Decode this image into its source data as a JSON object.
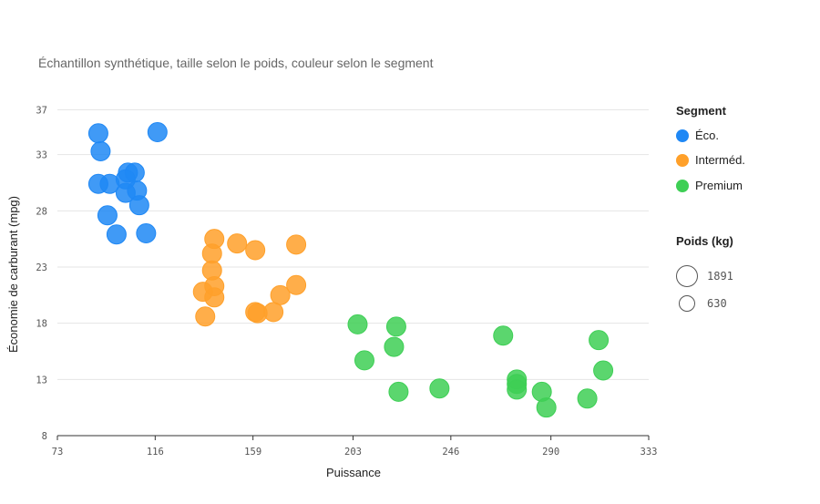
{
  "subtitle": "Échantillon synthétique, taille selon le poids, couleur selon le segment",
  "legend": {
    "segment_title": "Segment",
    "segments": [
      {
        "label": "Éco.",
        "color": "#1f88f5"
      },
      {
        "label": "Interméd.",
        "color": "#ffa02a"
      },
      {
        "label": "Premium",
        "color": "#3ecf55"
      }
    ],
    "size_title": "Poids (kg)",
    "sizes": [
      {
        "label": "1891"
      },
      {
        "label": "630"
      }
    ]
  },
  "chart_data": {
    "type": "scatter",
    "title": "",
    "subtitle": "Échantillon synthétique, taille selon le poids, couleur selon le segment",
    "xlabel": "Puissance",
    "ylabel": "Économie de carburant (mpg)",
    "xlim": [
      73,
      333
    ],
    "ylim": [
      8,
      38
    ],
    "x_ticks": [
      "73",
      "116",
      "159",
      "203",
      "246",
      "290",
      "333"
    ],
    "y_ticks": [
      "8",
      "13",
      "18",
      "23",
      "28",
      "33",
      "37"
    ],
    "grid": "horizontal",
    "legend_position": "right",
    "series": [
      {
        "name": "Éco.",
        "color": "#1f88f5",
        "points": [
          {
            "x": 91,
            "y": 34.9
          },
          {
            "x": 92,
            "y": 33.3
          },
          {
            "x": 91,
            "y": 30.4
          },
          {
            "x": 96,
            "y": 30.4
          },
          {
            "x": 103,
            "y": 30.8
          },
          {
            "x": 104,
            "y": 31.4
          },
          {
            "x": 103,
            "y": 29.6
          },
          {
            "x": 107,
            "y": 31.4
          },
          {
            "x": 108,
            "y": 29.8
          },
          {
            "x": 95,
            "y": 27.6
          },
          {
            "x": 109,
            "y": 28.5
          },
          {
            "x": 99,
            "y": 25.9
          },
          {
            "x": 112,
            "y": 26.0
          },
          {
            "x": 117,
            "y": 35.0
          }
        ]
      },
      {
        "name": "Interméd.",
        "color": "#ffa02a",
        "points": [
          {
            "x": 142,
            "y": 25.5
          },
          {
            "x": 152,
            "y": 25.1
          },
          {
            "x": 141,
            "y": 24.2
          },
          {
            "x": 160,
            "y": 24.5
          },
          {
            "x": 178,
            "y": 25.0
          },
          {
            "x": 141,
            "y": 22.7
          },
          {
            "x": 142,
            "y": 21.3
          },
          {
            "x": 137,
            "y": 20.8
          },
          {
            "x": 142,
            "y": 20.3
          },
          {
            "x": 171,
            "y": 20.5
          },
          {
            "x": 178,
            "y": 21.4
          },
          {
            "x": 160,
            "y": 19.0
          },
          {
            "x": 161,
            "y": 18.9
          },
          {
            "x": 168,
            "y": 19.0
          },
          {
            "x": 138,
            "y": 18.6
          }
        ]
      },
      {
        "name": "Premium",
        "color": "#3ecf55",
        "points": [
          {
            "x": 205,
            "y": 17.9
          },
          {
            "x": 222,
            "y": 17.7
          },
          {
            "x": 221,
            "y": 15.9
          },
          {
            "x": 208,
            "y": 14.7
          },
          {
            "x": 223,
            "y": 11.9
          },
          {
            "x": 241,
            "y": 12.2
          },
          {
            "x": 269,
            "y": 16.9
          },
          {
            "x": 275,
            "y": 13.0
          },
          {
            "x": 275,
            "y": 12.6
          },
          {
            "x": 275,
            "y": 12.1
          },
          {
            "x": 286,
            "y": 11.9
          },
          {
            "x": 288,
            "y": 10.5
          },
          {
            "x": 306,
            "y": 11.3
          },
          {
            "x": 311,
            "y": 16.5
          },
          {
            "x": 313,
            "y": 13.8
          }
        ]
      }
    ]
  }
}
